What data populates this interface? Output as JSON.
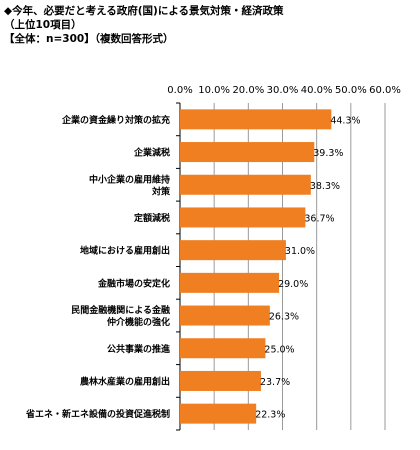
{
  "header": {
    "title": "◆今年、必要だと考える政府(国)による景気対策・経済政策",
    "subtitle": "（上位10項目）",
    "base": "【全体：n=300】（複数回答形式）"
  },
  "colors": {
    "bar": "#F07F22",
    "grid": "#9a9a9a",
    "axis": "#000000"
  },
  "chart_data": {
    "type": "bar",
    "orientation": "horizontal",
    "xlim": [
      0,
      60
    ],
    "xticks": [
      "0.0%",
      "10.0%",
      "20.0%",
      "30.0%",
      "40.0%",
      "50.0%",
      "60.0%"
    ],
    "tick_values": [
      0,
      10,
      20,
      30,
      40,
      50,
      60
    ],
    "grid": true,
    "categories": [
      [
        "企業の資金繰り対策の拡充"
      ],
      [
        "企業減税"
      ],
      [
        "中小企業の雇用維持",
        "対策"
      ],
      [
        "定額減税"
      ],
      [
        "地域における雇用創出"
      ],
      [
        "金融市場の安定化"
      ],
      [
        "民間金融機関による金融",
        "仲介機能の強化"
      ],
      [
        "公共事業の推進"
      ],
      [
        "農林水産業の雇用創出"
      ],
      [
        "省エネ・新エネ設備の投資促進税制"
      ]
    ],
    "values": [
      44.3,
      39.3,
      38.3,
      36.7,
      31.0,
      29.0,
      26.3,
      25.0,
      23.7,
      22.3
    ],
    "value_labels": [
      "44.3%",
      "39.3%",
      "38.3%",
      "36.7%",
      "31.0%",
      "29.0%",
      "26.3%",
      "25.0%",
      "23.7%",
      "22.3%"
    ]
  }
}
